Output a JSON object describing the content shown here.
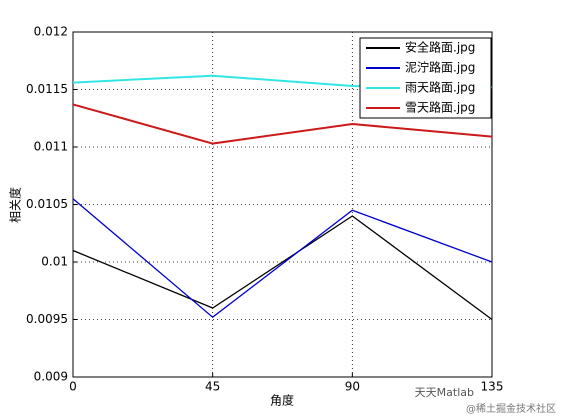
{
  "chart_data": {
    "type": "line",
    "x_label": "角度",
    "y_label": "相关度",
    "x": [
      0,
      45,
      90,
      135
    ],
    "series": [
      {
        "name": "安全路面.jpg",
        "color": "#000000",
        "values": [
          0.0101,
          0.0096,
          0.0104,
          0.0095
        ]
      },
      {
        "name": "泥泞路面.jpg",
        "color": "#0000cc",
        "values": [
          0.01055,
          0.00952,
          0.01045,
          0.01
        ]
      },
      {
        "name": "雨天路面.jpg",
        "color": "#33e6e6",
        "values": [
          0.01156,
          0.01162,
          0.01153,
          0.01152
        ]
      },
      {
        "name": "雪天路面.jpg",
        "color": "#cc1a1a",
        "values": [
          0.01137,
          0.01103,
          0.0112,
          0.01109
        ]
      }
    ],
    "xlim": [
      0,
      135
    ],
    "xticks": [
      0,
      45,
      90,
      135
    ],
    "ylim": [
      0.009,
      0.012
    ],
    "yticks": [
      0.009,
      0.0095,
      0.01,
      0.0105,
      0.011,
      0.0115,
      0.012
    ],
    "grid": true,
    "legend": "upper right"
  },
  "watermark": [
    "天天Matlab",
    "@稀土掘金技术社区"
  ]
}
